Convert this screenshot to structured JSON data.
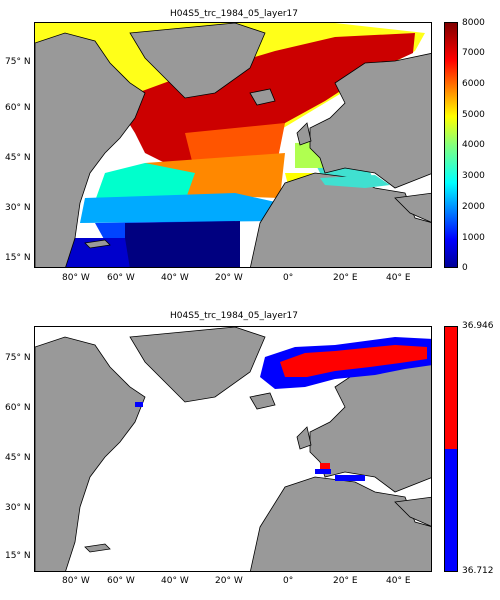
{
  "maps": [
    {
      "title": "H04S5_trc_1984_05_layer17",
      "lat_labels": [
        "75° N",
        "60° N",
        "45° N",
        "30° N",
        "15° N"
      ],
      "colorbar": {
        "ticks": [
          "8000",
          "7000",
          "6000",
          "5000",
          "4000",
          "3000",
          "2000",
          "1000",
          "0"
        ],
        "colormap": "jet"
      }
    },
    {
      "title": "H04S5_trc_1984_05_layer17",
      "lat_labels": [
        "75° N",
        "60° N",
        "45° N",
        "30° N",
        "15° N"
      ],
      "lon_labels": [
        "80° W",
        "60° W",
        "40° W",
        "20° W",
        "0°",
        "20° E",
        "40° E"
      ],
      "colorbar": {
        "max_label": "36.946",
        "min_label": "36.712",
        "colors": [
          "#ff0000",
          "#0000ff"
        ]
      }
    }
  ],
  "colors": {
    "land": "#999999",
    "ocean_nodata": "#ffffff",
    "red": "#ff0000",
    "blue": "#0000ff"
  }
}
